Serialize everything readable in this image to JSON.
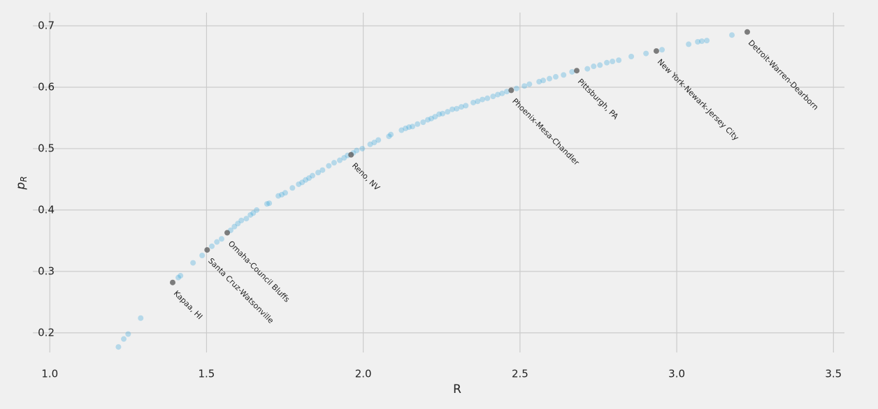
{
  "chart_data": {
    "type": "scatter",
    "x_label": "R",
    "y_label": "p",
    "y_label_subscript": "R",
    "xlim": [
      0.946,
      3.535
    ],
    "ylim": [
      0.168,
      0.7216
    ],
    "xticks": [
      {
        "value": 1,
        "label": "1.0"
      },
      1.5,
      {
        "value": 2,
        "label": "2.0"
      },
      2.5,
      {
        "value": 3,
        "label": "3.0"
      },
      3.5
    ],
    "yticks": [
      0.2,
      0.3,
      0.4,
      0.5,
      0.6,
      0.7
    ],
    "grid": true,
    "series": [
      {
        "color": "#30a2da",
        "alpha": 0.3,
        "x": [
          1.219,
          1.236,
          1.25,
          1.29,
          1.41,
          1.417,
          1.457,
          1.486,
          1.517,
          1.533,
          1.548,
          1.577,
          1.589,
          1.6,
          1.611,
          1.627,
          1.64,
          1.649,
          1.66,
          1.693,
          1.7,
          1.729,
          1.74,
          1.751,
          1.774,
          1.794,
          1.805,
          1.816,
          1.827,
          1.838,
          1.856,
          1.87,
          1.89,
          1.907,
          1.925,
          1.939,
          1.95,
          1.968,
          1.979,
          1.997,
          2.022,
          2.035,
          2.048,
          2.082,
          2.088,
          2.122,
          2.135,
          2.146,
          2.157,
          2.173,
          2.191,
          2.206,
          2.217,
          2.229,
          2.242,
          2.253,
          2.269,
          2.284,
          2.298,
          2.313,
          2.327,
          2.351,
          2.365,
          2.38,
          2.396,
          2.414,
          2.429,
          2.443,
          2.458,
          2.489,
          2.514,
          2.53,
          2.561,
          2.574,
          2.594,
          2.614,
          2.639,
          2.666,
          2.715,
          2.735,
          2.755,
          2.777,
          2.795,
          2.815,
          2.855,
          2.902,
          2.953,
          3.038,
          3.067,
          3.08,
          3.096,
          3.176
        ],
        "values": [
          0.177,
          0.19,
          0.198,
          0.224,
          0.29,
          0.293,
          0.314,
          0.326,
          0.341,
          0.348,
          0.353,
          0.367,
          0.373,
          0.378,
          0.383,
          0.386,
          0.392,
          0.395,
          0.4,
          0.41,
          0.411,
          0.423,
          0.425,
          0.428,
          0.436,
          0.442,
          0.445,
          0.449,
          0.452,
          0.456,
          0.461,
          0.465,
          0.472,
          0.477,
          0.481,
          0.485,
          0.489,
          0.493,
          0.497,
          0.5,
          0.507,
          0.51,
          0.514,
          0.52,
          0.523,
          0.53,
          0.533,
          0.535,
          0.536,
          0.54,
          0.543,
          0.547,
          0.549,
          0.552,
          0.556,
          0.557,
          0.56,
          0.564,
          0.565,
          0.568,
          0.57,
          0.575,
          0.577,
          0.58,
          0.582,
          0.585,
          0.588,
          0.59,
          0.593,
          0.598,
          0.602,
          0.605,
          0.609,
          0.611,
          0.614,
          0.617,
          0.62,
          0.625,
          0.63,
          0.634,
          0.636,
          0.64,
          0.642,
          0.644,
          0.65,
          0.655,
          0.661,
          0.67,
          0.674,
          0.675,
          0.676,
          0.685
        ]
      },
      {
        "color": "#555555",
        "alpha": 0.75,
        "x": [
          1.392,
          1.502,
          1.566,
          1.961,
          2.472,
          2.681,
          2.935,
          3.225
        ],
        "values": [
          0.282,
          0.335,
          0.363,
          0.49,
          0.595,
          0.627,
          0.659,
          0.69
        ],
        "labels": [
          "Kapaa, HI",
          "Santa Cruz-Watsonville",
          "Omaha-Council Bluffs",
          "Reno, NV",
          "Phoenix-Mesa-Chandler",
          "Pittsburgh, PA",
          "New York-Newark-Jersey City",
          "Detroit-Warren-Dearborn"
        ]
      }
    ]
  }
}
